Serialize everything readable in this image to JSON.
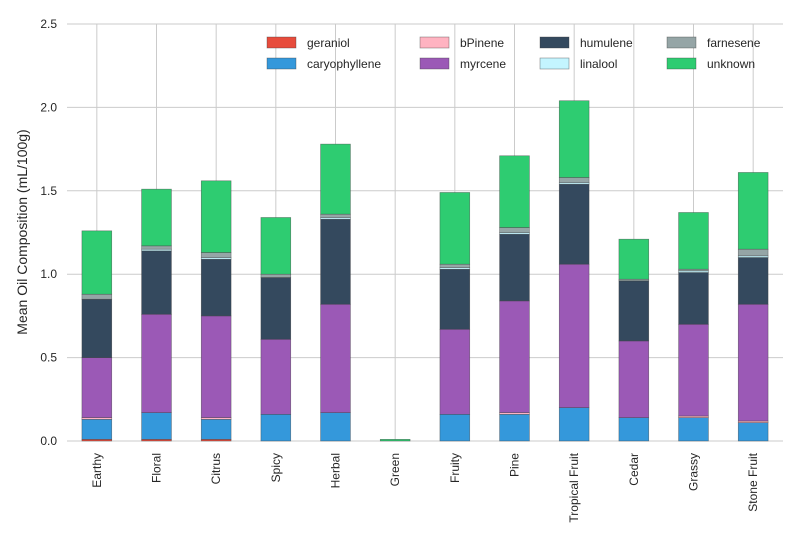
{
  "chart_data": {
    "type": "bar",
    "stacked": true,
    "ylabel": "Mean Oil Composition (mL/100g)",
    "ylim": [
      0,
      2.5
    ],
    "yticks": [
      "0.0",
      "0.5",
      "1.0",
      "1.5",
      "2.0",
      "2.5"
    ],
    "grid": true,
    "legend_position": "top-right",
    "categories": [
      "Earthy",
      "Floral",
      "Citrus",
      "Spicy",
      "Herbal",
      "Green",
      "Fruity",
      "Pine",
      "Tropical Fruit",
      "Cedar",
      "Grassy",
      "Stone Fruit"
    ],
    "series": [
      {
        "name": "geraniol",
        "color": "#e74c3c",
        "values": [
          0.01,
          0.01,
          0.01,
          0.0,
          0.0,
          0.0,
          0.0,
          0.0,
          0.0,
          0.0,
          0.0,
          0.0
        ]
      },
      {
        "name": "caryophyllene",
        "color": "#3498db",
        "values": [
          0.12,
          0.16,
          0.12,
          0.16,
          0.17,
          0.0,
          0.16,
          0.16,
          0.2,
          0.14,
          0.14,
          0.11
        ]
      },
      {
        "name": "bPinene",
        "color": "#ffb3c1",
        "values": [
          0.01,
          0.0,
          0.01,
          0.0,
          0.0,
          0.0,
          0.0,
          0.01,
          0.0,
          0.0,
          0.01,
          0.01
        ]
      },
      {
        "name": "myrcene",
        "color": "#9b59b6",
        "values": [
          0.36,
          0.59,
          0.61,
          0.45,
          0.65,
          0.0,
          0.51,
          0.67,
          0.86,
          0.46,
          0.55,
          0.7
        ]
      },
      {
        "name": "humulene",
        "color": "#34495e",
        "values": [
          0.35,
          0.38,
          0.34,
          0.37,
          0.51,
          0.0,
          0.36,
          0.4,
          0.48,
          0.36,
          0.31,
          0.28
        ]
      },
      {
        "name": "linalool",
        "color": "#c4f5ff",
        "values": [
          0.0,
          0.01,
          0.01,
          0.0,
          0.01,
          0.0,
          0.01,
          0.01,
          0.01,
          0.0,
          0.01,
          0.01
        ]
      },
      {
        "name": "farnesene",
        "color": "#95a5a6",
        "values": [
          0.03,
          0.02,
          0.03,
          0.02,
          0.02,
          0.0,
          0.02,
          0.03,
          0.03,
          0.01,
          0.01,
          0.04
        ]
      },
      {
        "name": "unknown",
        "color": "#2ecc71",
        "values": [
          0.38,
          0.34,
          0.43,
          0.34,
          0.42,
          0.01,
          0.43,
          0.43,
          0.46,
          0.24,
          0.34,
          0.46
        ]
      }
    ]
  }
}
